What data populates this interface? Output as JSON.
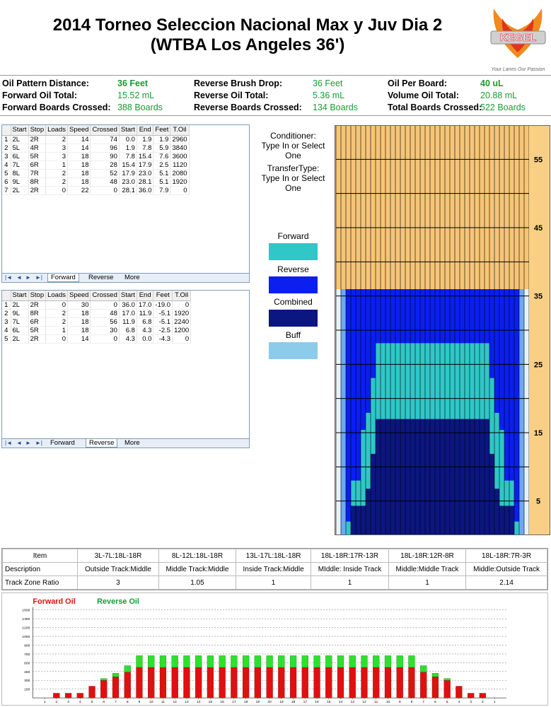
{
  "title_line1": "2014 Torneo Seleccion Nacional Max y Juv Dia 2",
  "title_line2": "(WTBA Los Angeles 36')",
  "logo": {
    "text": "KEGEL",
    "tagline": "Your Lanes   Our Passion",
    "icon": "phoenix-logo-icon"
  },
  "summary": {
    "oil_pattern_distance_label": "Oil Pattern Distance:",
    "oil_pattern_distance": "36 Feet",
    "reverse_brush_drop_label": "Reverse Brush Drop:",
    "reverse_brush_drop": "36 Feet",
    "oil_per_board_label": "Oil Per Board:",
    "oil_per_board": "40 uL",
    "forward_oil_total_label": "Forward Oil Total:",
    "forward_oil_total": "15.52 mL",
    "reverse_oil_total_label": "Reverse Oil Total:",
    "reverse_oil_total": "5.36 mL",
    "volume_oil_total_label": "Volume Oil Total:",
    "volume_oil_total": "20.88 mL",
    "forward_boards_crossed_label": "Forward Boards Crossed:",
    "forward_boards_crossed": "388 Boards",
    "reverse_boards_crossed_label": "Reverse Boards Crossed:",
    "reverse_boards_crossed": "134 Boards",
    "total_boards_crossed_label": "Total Boards Crossed:",
    "total_boards_crossed": "522 Boards"
  },
  "columns": [
    "",
    "Start",
    "Stop",
    "Loads",
    "Speed",
    "Crossed",
    "Start",
    "End",
    "Feet",
    "T.Oil"
  ],
  "forward_table": [
    [
      "1",
      "2L",
      "2R",
      "2",
      "14",
      "74",
      "0.0",
      "1.9",
      "1.9",
      "2960"
    ],
    [
      "2",
      "5L",
      "4R",
      "3",
      "14",
      "96",
      "1.9",
      "7.8",
      "5.9",
      "3840"
    ],
    [
      "3",
      "6L",
      "5R",
      "3",
      "18",
      "90",
      "7.8",
      "15.4",
      "7.6",
      "3600"
    ],
    [
      "4",
      "7L",
      "6R",
      "1",
      "18",
      "28",
      "15.4",
      "17.9",
      "2.5",
      "1120"
    ],
    [
      "5",
      "8L",
      "7R",
      "2",
      "18",
      "52",
      "17.9",
      "23.0",
      "5.1",
      "2080"
    ],
    [
      "6",
      "9L",
      "8R",
      "2",
      "18",
      "48",
      "23.0",
      "28.1",
      "5.1",
      "1920"
    ],
    [
      "7",
      "2L",
      "2R",
      "0",
      "22",
      "0",
      "28.1",
      "36.0",
      "7.9",
      "0"
    ]
  ],
  "reverse_table": [
    [
      "1",
      "2L",
      "2R",
      "0",
      "30",
      "0",
      "36.0",
      "17.0",
      "-19.0",
      "0"
    ],
    [
      "2",
      "9L",
      "8R",
      "2",
      "18",
      "48",
      "17.0",
      "11.9",
      "-5.1",
      "1920"
    ],
    [
      "3",
      "7L",
      "6R",
      "2",
      "18",
      "56",
      "11.9",
      "6.8",
      "-5.1",
      "2240"
    ],
    [
      "4",
      "6L",
      "5R",
      "1",
      "18",
      "30",
      "6.8",
      "4.3",
      "-2.5",
      "1200"
    ],
    [
      "5",
      "2L",
      "2R",
      "0",
      "14",
      "0",
      "4.3",
      "0.0",
      "-4.3",
      "0"
    ]
  ],
  "tabs": {
    "forward": "Forward",
    "reverse": "Reverse",
    "more": "More"
  },
  "nav_glyphs": [
    "|◄",
    "◄",
    "►",
    "►|"
  ],
  "legend": {
    "conditioner": "Conditioner:",
    "conditioner_value": "Type In or Select One",
    "transfer": "TransferType:",
    "transfer_value": "Type In or Select One",
    "forward": "Forward",
    "reverse": "Reverse",
    "combined": "Combined",
    "buff": "Buff"
  },
  "colors": {
    "forward": "#2fc7c7",
    "reverse": "#0a1ff0",
    "combined": "#0b1680",
    "buff": "#8ccbea",
    "lane": "#f6c577",
    "forward_oil": "#e01010",
    "reverse_oil": "#2ee02e"
  },
  "lane_feet_labels": [
    "55",
    "45",
    "35",
    "25",
    "15",
    "5"
  ],
  "zone": {
    "headers": [
      "Item",
      "3L-7L:18L-18R",
      "8L-12L:18L-18R",
      "13L-17L:18L-18R",
      "18L-18R:17R-13R",
      "18L-18R:12R-8R",
      "18L-18R:7R-3R"
    ],
    "description_label": "Description",
    "descriptions": [
      "Outside Track:Middle",
      "Middle Track:Middle",
      "Inside Track:Middle",
      "MIddle: Inside Track",
      "Middle:Middle Track",
      "Middle:Outside Track"
    ],
    "ratio_label": "Track Zone Ratio",
    "ratios": [
      "3",
      "1.05",
      "1",
      "1",
      "1",
      "2.14"
    ]
  },
  "chart_data": {
    "type": "bar",
    "legend": [
      "Forward Oil",
      "Reverse Oil"
    ],
    "y_ticks": [
      "1500",
      "1350",
      "1200",
      "1050",
      "900",
      "750",
      "600",
      "450",
      "300",
      "150"
    ],
    "ylim": [
      0,
      1500
    ],
    "categories": [
      "1",
      "2",
      "3",
      "4",
      "5",
      "6",
      "7",
      "8",
      "9",
      "10",
      "11",
      "12",
      "13",
      "14",
      "15",
      "16",
      "17",
      "18",
      "19",
      "20",
      "19",
      "18",
      "17",
      "16",
      "15",
      "14",
      "13",
      "12",
      "11",
      "10",
      "9",
      "8",
      "7",
      "6",
      "5",
      "4",
      "3",
      "2",
      "1"
    ],
    "series": [
      {
        "name": "Forward Oil",
        "values": [
          0,
          80,
          80,
          80,
          200,
          300,
          360,
          440,
          520,
          520,
          520,
          520,
          520,
          520,
          520,
          520,
          520,
          520,
          520,
          520,
          520,
          520,
          520,
          520,
          520,
          520,
          520,
          520,
          520,
          520,
          520,
          520,
          440,
          360,
          300,
          200,
          80,
          80,
          0
        ]
      },
      {
        "name": "Reverse Oil",
        "values": [
          0,
          0,
          0,
          0,
          0,
          30,
          60,
          110,
          200,
          200,
          200,
          200,
          200,
          200,
          200,
          200,
          200,
          200,
          200,
          200,
          200,
          200,
          200,
          200,
          200,
          200,
          200,
          200,
          200,
          200,
          200,
          200,
          110,
          60,
          30,
          0,
          0,
          0,
          0
        ]
      }
    ]
  }
}
